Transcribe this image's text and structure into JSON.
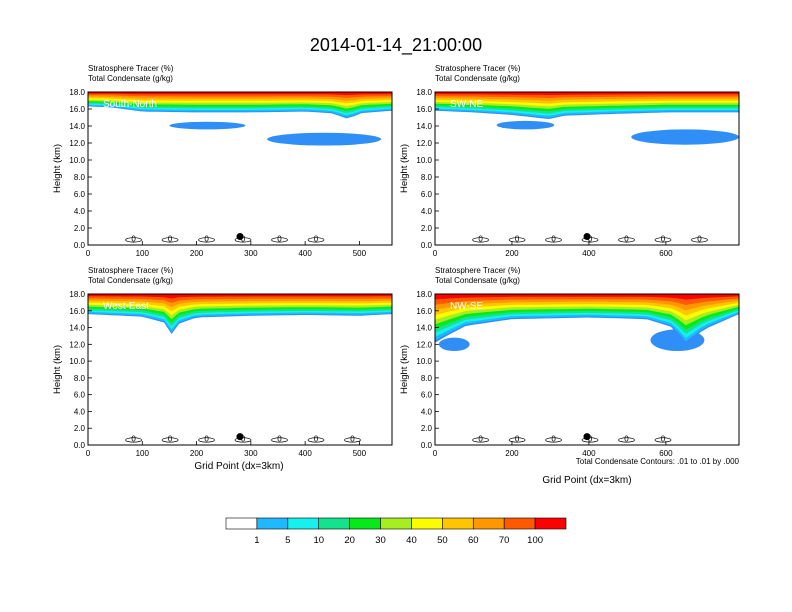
{
  "chart_data": {
    "type": "heatmap",
    "title": "2014-01-14_21:00:00",
    "field_labels": [
      "Stratosphere Tracer   (%)",
      "Total Condensate   (g/kg)"
    ],
    "ylabel": "Height (km)",
    "xlabel": "Grid Point (dx=3km)",
    "contour_note": "Total Condensate Contours: .01 to .01 by .000",
    "y_ticks": [
      "0.0",
      "2.0",
      "4.0",
      "6.0",
      "8.0",
      "10.0",
      "12.0",
      "14.0",
      "16.0",
      "18.0"
    ],
    "ylim": [
      0,
      18
    ],
    "panels": [
      {
        "name": "South-North",
        "xlim": [
          0,
          560
        ],
        "x_ticks": [
          0,
          100,
          200,
          300,
          400,
          500
        ],
        "marker_x": 280,
        "tracer_top": [
          [
            0,
            18
          ],
          [
            560,
            18
          ]
        ],
        "tracer_bottom": [
          [
            0,
            16.3
          ],
          [
            40,
            16.2
          ],
          [
            100,
            15.7
          ],
          [
            200,
            15.6
          ],
          [
            300,
            15.6
          ],
          [
            400,
            15.7
          ],
          [
            450,
            15.5
          ],
          [
            480,
            14.8
          ],
          [
            500,
            15.5
          ],
          [
            560,
            15.8
          ]
        ],
        "condensate_blobs": [
          {
            "x": [
              330,
              540
            ],
            "y": [
              11.7,
              13.2
            ]
          },
          {
            "x": [
              150,
              290
            ],
            "y": [
              13.6,
              14.5
            ]
          }
        ],
        "labels": [
          "0",
          "0",
          "0",
          "0",
          "0",
          "0"
        ]
      },
      {
        "name": "SW-NE",
        "xlim": [
          0,
          790
        ],
        "x_ticks": [
          0,
          200,
          400,
          600
        ],
        "marker_x": 395,
        "tracer_top": [
          [
            0,
            18
          ],
          [
            790,
            18
          ]
        ],
        "tracer_bottom": [
          [
            0,
            15.8
          ],
          [
            100,
            15.6
          ],
          [
            200,
            15.3
          ],
          [
            300,
            14.8
          ],
          [
            330,
            15.2
          ],
          [
            450,
            15.4
          ],
          [
            600,
            15.6
          ],
          [
            790,
            15.6
          ]
        ],
        "condensate_blobs": [
          {
            "x": [
              510,
              790
            ],
            "y": [
              11.8,
              13.6
            ]
          },
          {
            "x": [
              160,
              310
            ],
            "y": [
              13.6,
              14.6
            ]
          }
        ],
        "labels": [
          "0",
          "0",
          "0",
          "0",
          "0",
          "0",
          "0"
        ]
      },
      {
        "name": "West-East",
        "xlim": [
          0,
          560
        ],
        "x_ticks": [
          0,
          100,
          200,
          300,
          400,
          500
        ],
        "marker_x": 280,
        "tracer_top": [
          [
            0,
            18
          ],
          [
            560,
            18
          ]
        ],
        "tracer_bottom": [
          [
            0,
            15.6
          ],
          [
            100,
            15.3
          ],
          [
            140,
            14.6
          ],
          [
            150,
            12.8
          ],
          [
            165,
            14.4
          ],
          [
            200,
            15.2
          ],
          [
            300,
            15.4
          ],
          [
            400,
            15.5
          ],
          [
            500,
            15.4
          ],
          [
            560,
            15.6
          ]
        ],
        "condensate_blobs": [],
        "labels": [
          "0",
          "0",
          "0",
          "0",
          "0",
          "0",
          "0"
        ]
      },
      {
        "name": "NW-SE",
        "xlim": [
          0,
          790
        ],
        "x_ticks": [
          0,
          200,
          400,
          600
        ],
        "marker_x": 395,
        "tracer_top": [
          [
            0,
            18
          ],
          [
            790,
            18
          ]
        ],
        "tracer_bottom": [
          [
            0,
            12.2
          ],
          [
            30,
            13.0
          ],
          [
            80,
            14.2
          ],
          [
            200,
            15.0
          ],
          [
            400,
            15.2
          ],
          [
            550,
            15.0
          ],
          [
            620,
            14.0
          ],
          [
            650,
            12.0
          ],
          [
            700,
            13.8
          ],
          [
            790,
            15.6
          ]
        ],
        "condensate_blobs": [
          {
            "x": [
              10,
              90
            ],
            "y": [
              11.2,
              12.8
            ]
          },
          {
            "x": [
              560,
              700
            ],
            "y": [
              11.2,
              13.8
            ]
          }
        ],
        "labels": [
          "0",
          "0",
          "0",
          "0",
          "0",
          "0"
        ]
      }
    ],
    "colorbar": {
      "levels": [
        "1",
        "5",
        "10",
        "20",
        "30",
        "40",
        "50",
        "60",
        "70",
        "100"
      ],
      "colors": [
        "#ffffff",
        "#2f8ff7",
        "#1fb9ff",
        "#16f0ef",
        "#13e38c",
        "#06ea1c",
        "#a6ee22",
        "#fbfc00",
        "#ffc600",
        "#ff9800",
        "#ff5a00",
        "#ff0000"
      ]
    }
  }
}
